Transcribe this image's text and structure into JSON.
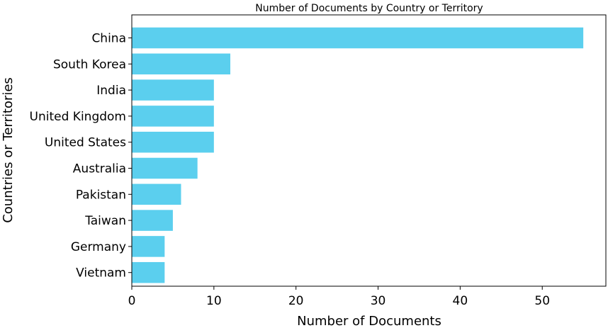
{
  "chart_data": {
    "type": "bar",
    "orientation": "horizontal",
    "title": "Number of Documents by Country or Territory",
    "xlabel": "Number of Documents",
    "ylabel": "Countries or Territories",
    "categories": [
      "China",
      "South Korea",
      "India",
      "United Kingdom",
      "United States",
      "Australia",
      "Pakistan",
      "Taiwan",
      "Germany",
      "Vietnam"
    ],
    "values": [
      55,
      12,
      10,
      10,
      10,
      8,
      6,
      5,
      4,
      4
    ],
    "xlim": [
      0,
      57.75
    ],
    "xticks": [
      0,
      10,
      20,
      30,
      40,
      50
    ],
    "xtick_labels": [
      "0",
      "10",
      "20",
      "30",
      "40",
      "50"
    ],
    "bar_color": "#5bcfee",
    "grid": false,
    "legend": "none"
  }
}
